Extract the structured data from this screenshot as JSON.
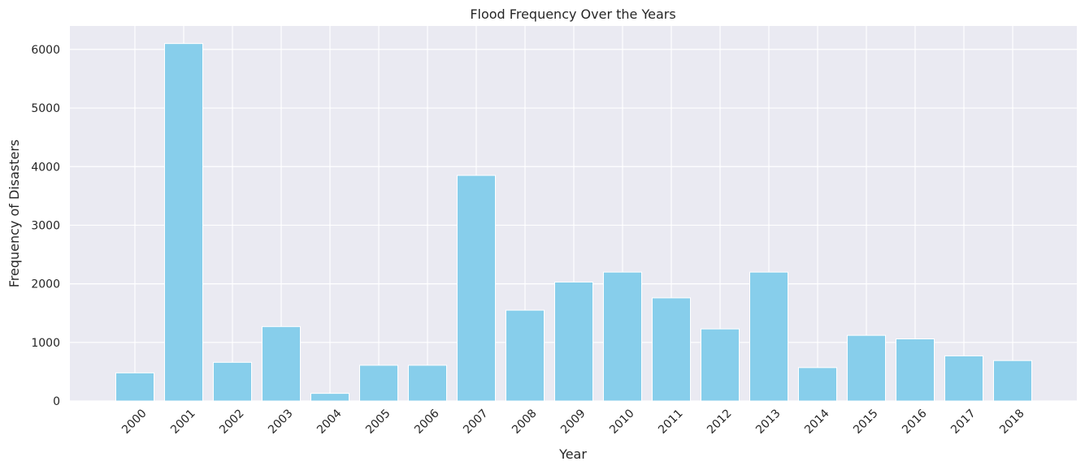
{
  "chart_data": {
    "type": "bar",
    "title": "Flood Frequency Over the Years",
    "xlabel": "Year",
    "ylabel": "Frequency of Disasters",
    "categories": [
      "2000",
      "2001",
      "2002",
      "2003",
      "2004",
      "2005",
      "2006",
      "2007",
      "2008",
      "2009",
      "2010",
      "2011",
      "2012",
      "2013",
      "2014",
      "2015",
      "2016",
      "2017",
      "2018"
    ],
    "values": [
      480,
      6100,
      660,
      1270,
      130,
      610,
      610,
      3850,
      1550,
      2030,
      2200,
      1760,
      1230,
      2200,
      570,
      1120,
      1060,
      770,
      690
    ],
    "yticks": [
      "0",
      "1000",
      "2000",
      "3000",
      "4000",
      "5000",
      "6000"
    ],
    "ylim": [
      0,
      6400
    ],
    "grid": true,
    "colors": {
      "bar": "#87CEEB",
      "plot_background": "#EAEAF2",
      "grid": "#FFFFFF",
      "text": "#262626"
    }
  }
}
